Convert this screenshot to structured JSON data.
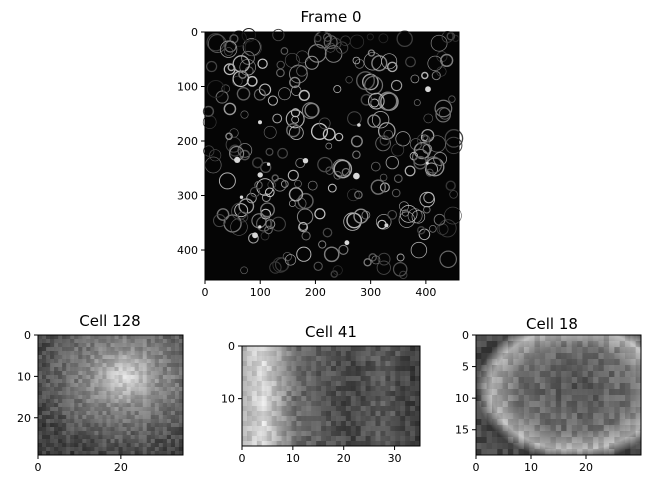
{
  "main_panel": {
    "title": "Frame 0",
    "x_ticks": [
      "0",
      "100",
      "200",
      "300",
      "400"
    ],
    "y_ticks": [
      "0",
      "100",
      "200",
      "300",
      "400"
    ],
    "x_range": [
      0,
      460
    ],
    "y_range": [
      0,
      455
    ]
  },
  "cell_panels": [
    {
      "title": "Cell 128",
      "x_ticks": [
        "0",
        "20"
      ],
      "y_ticks": [
        "0",
        "10",
        "20"
      ],
      "x_range": [
        0,
        35
      ],
      "y_range": [
        0,
        29
      ]
    },
    {
      "title": "Cell 41",
      "x_ticks": [
        "0",
        "10",
        "20",
        "30"
      ],
      "y_ticks": [
        "0",
        "10"
      ],
      "x_range": [
        0,
        35
      ],
      "y_range": [
        0,
        19
      ]
    },
    {
      "title": "Cell 18",
      "x_ticks": [
        "0",
        "10",
        "20"
      ],
      "y_ticks": [
        "0",
        "5",
        "10",
        "15"
      ],
      "x_range": [
        0,
        30
      ],
      "y_range": [
        0,
        19
      ]
    }
  ],
  "colors": {
    "background": "#ffffff",
    "axes": "#000000",
    "image_dark": "#050505",
    "image_light": "#e8e8e8"
  }
}
